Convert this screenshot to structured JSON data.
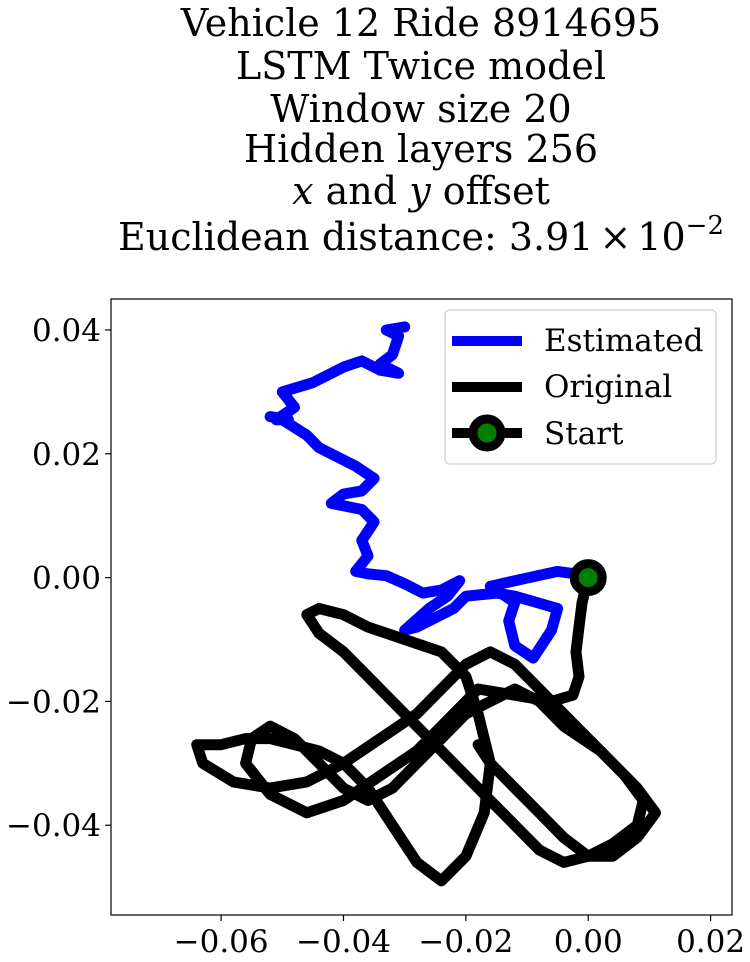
{
  "chart_data": {
    "type": "line",
    "title_lines": [
      "Vehicle 12 Ride 8914695",
      "LSTM Twice model",
      "Window size 20",
      "Hidden layers 256"
    ],
    "title_offset": {
      "var_x": "x",
      "and": " and ",
      "var_y": "y",
      "suffix": " offset"
    },
    "title_distance": {
      "prefix": "Euclidean distance: ",
      "mantissa": "3.91",
      "times": "×",
      "base": "10",
      "exponent": "−2"
    },
    "xlim": [
      -0.078,
      0.0235
    ],
    "ylim": [
      -0.0545,
      0.045
    ],
    "x_ticks": [
      -0.06,
      -0.04,
      -0.02,
      0.0,
      0.02
    ],
    "x_tick_labels": [
      "−0.06",
      "−0.04",
      "−0.02",
      "0.00",
      "0.02"
    ],
    "y_ticks": [
      0.04,
      0.02,
      0.0,
      -0.02,
      -0.04
    ],
    "y_tick_labels": [
      "0.04",
      "0.02",
      "0.00",
      "−0.02",
      "−0.04"
    ],
    "grid": false,
    "legend_position": "top-right",
    "legend": [
      {
        "label": "Estimated",
        "color": "#0000ff"
      },
      {
        "label": "Original",
        "color": "#000000"
      },
      {
        "label": "Start",
        "color": "#000000",
        "marker_color": "#008000"
      }
    ],
    "series": [
      {
        "name": "Estimated",
        "color": "#0000ff",
        "x": [
          0.0,
          -0.002,
          -0.005,
          -0.012,
          -0.016,
          -0.012,
          -0.013,
          -0.012,
          -0.009,
          -0.006,
          -0.005,
          -0.012,
          -0.015,
          -0.02,
          -0.022,
          -0.028,
          -0.03,
          -0.026,
          -0.023,
          -0.021,
          -0.024,
          -0.027,
          -0.03,
          -0.033,
          -0.036,
          -0.038,
          -0.036,
          -0.037,
          -0.035,
          -0.037,
          -0.042,
          -0.04,
          -0.037,
          -0.035,
          -0.038,
          -0.04,
          -0.044,
          -0.046,
          -0.05,
          -0.052,
          -0.049,
          -0.051,
          -0.048,
          -0.05,
          -0.045,
          -0.04,
          -0.037,
          -0.034,
          -0.031,
          -0.034,
          -0.032,
          -0.031,
          -0.033,
          -0.03
        ],
        "y": [
          0.0,
          0.0006,
          0.001,
          -0.0005,
          -0.0014,
          -0.004,
          -0.007,
          -0.011,
          -0.013,
          -0.0085,
          -0.005,
          -0.003,
          -0.0025,
          -0.003,
          -0.005,
          -0.008,
          -0.0085,
          -0.005,
          -0.003,
          -0.0005,
          -0.002,
          -0.0025,
          -0.001,
          0.0003,
          0.0006,
          0.001,
          0.0035,
          0.006,
          0.009,
          0.011,
          0.012,
          0.0135,
          0.014,
          0.016,
          0.018,
          0.019,
          0.021,
          0.023,
          0.0255,
          0.026,
          0.0255,
          0.0255,
          0.0275,
          0.03,
          0.0315,
          0.034,
          0.035,
          0.0335,
          0.033,
          0.0345,
          0.036,
          0.039,
          0.04,
          0.0405
        ]
      },
      {
        "name": "Original",
        "color": "#000000",
        "x": [
          0.0,
          -0.001,
          -0.0015,
          -0.002,
          -0.0015,
          -0.0025,
          -0.006,
          -0.012,
          -0.018,
          -0.02,
          -0.024,
          -0.028,
          -0.034,
          -0.04,
          -0.046,
          -0.052,
          -0.056,
          -0.055,
          -0.052,
          -0.048,
          -0.044,
          -0.04,
          -0.036,
          -0.032,
          -0.028,
          -0.024,
          -0.02,
          -0.016,
          -0.012,
          -0.008,
          -0.004,
          0.002,
          0.006,
          0.009,
          0.008,
          0.004,
          0.0,
          -0.004,
          -0.008,
          -0.012,
          -0.016,
          -0.02,
          -0.024,
          -0.028,
          -0.032,
          -0.036,
          -0.04,
          -0.044,
          -0.046,
          -0.044,
          -0.04,
          -0.036,
          -0.03,
          -0.024,
          -0.02,
          -0.018,
          -0.016,
          -0.017,
          -0.02,
          -0.024,
          -0.028,
          -0.032,
          -0.036,
          -0.04,
          -0.044,
          -0.048,
          -0.052,
          -0.056,
          -0.06,
          -0.064,
          -0.063,
          -0.058,
          -0.052,
          -0.046,
          -0.04,
          -0.034,
          -0.028,
          -0.024,
          -0.02,
          -0.016,
          -0.012,
          -0.008,
          -0.004,
          0.0,
          0.004,
          0.008,
          0.011,
          0.008,
          0.004,
          0.0,
          -0.004,
          -0.008,
          -0.012,
          -0.016,
          -0.018
        ],
        "y": [
          0.0,
          -0.004,
          -0.008,
          -0.012,
          -0.016,
          -0.019,
          -0.02,
          -0.019,
          -0.018,
          -0.02,
          -0.024,
          -0.028,
          -0.032,
          -0.036,
          -0.038,
          -0.035,
          -0.03,
          -0.026,
          -0.024,
          -0.026,
          -0.03,
          -0.034,
          -0.036,
          -0.034,
          -0.03,
          -0.026,
          -0.022,
          -0.02,
          -0.018,
          -0.02,
          -0.024,
          -0.028,
          -0.032,
          -0.036,
          -0.04,
          -0.043,
          -0.045,
          -0.046,
          -0.044,
          -0.04,
          -0.036,
          -0.032,
          -0.028,
          -0.024,
          -0.02,
          -0.016,
          -0.012,
          -0.009,
          -0.006,
          -0.005,
          -0.006,
          -0.008,
          -0.01,
          -0.012,
          -0.016,
          -0.022,
          -0.03,
          -0.038,
          -0.045,
          -0.049,
          -0.046,
          -0.04,
          -0.034,
          -0.03,
          -0.028,
          -0.027,
          -0.026,
          -0.026,
          -0.027,
          -0.027,
          -0.03,
          -0.033,
          -0.034,
          -0.033,
          -0.03,
          -0.026,
          -0.022,
          -0.018,
          -0.014,
          -0.012,
          -0.014,
          -0.018,
          -0.022,
          -0.026,
          -0.03,
          -0.034,
          -0.038,
          -0.042,
          -0.045,
          -0.045,
          -0.042,
          -0.038,
          -0.034,
          -0.03,
          -0.027
        ]
      }
    ],
    "start_point": {
      "x": 0.0,
      "y": 0.0
    }
  }
}
